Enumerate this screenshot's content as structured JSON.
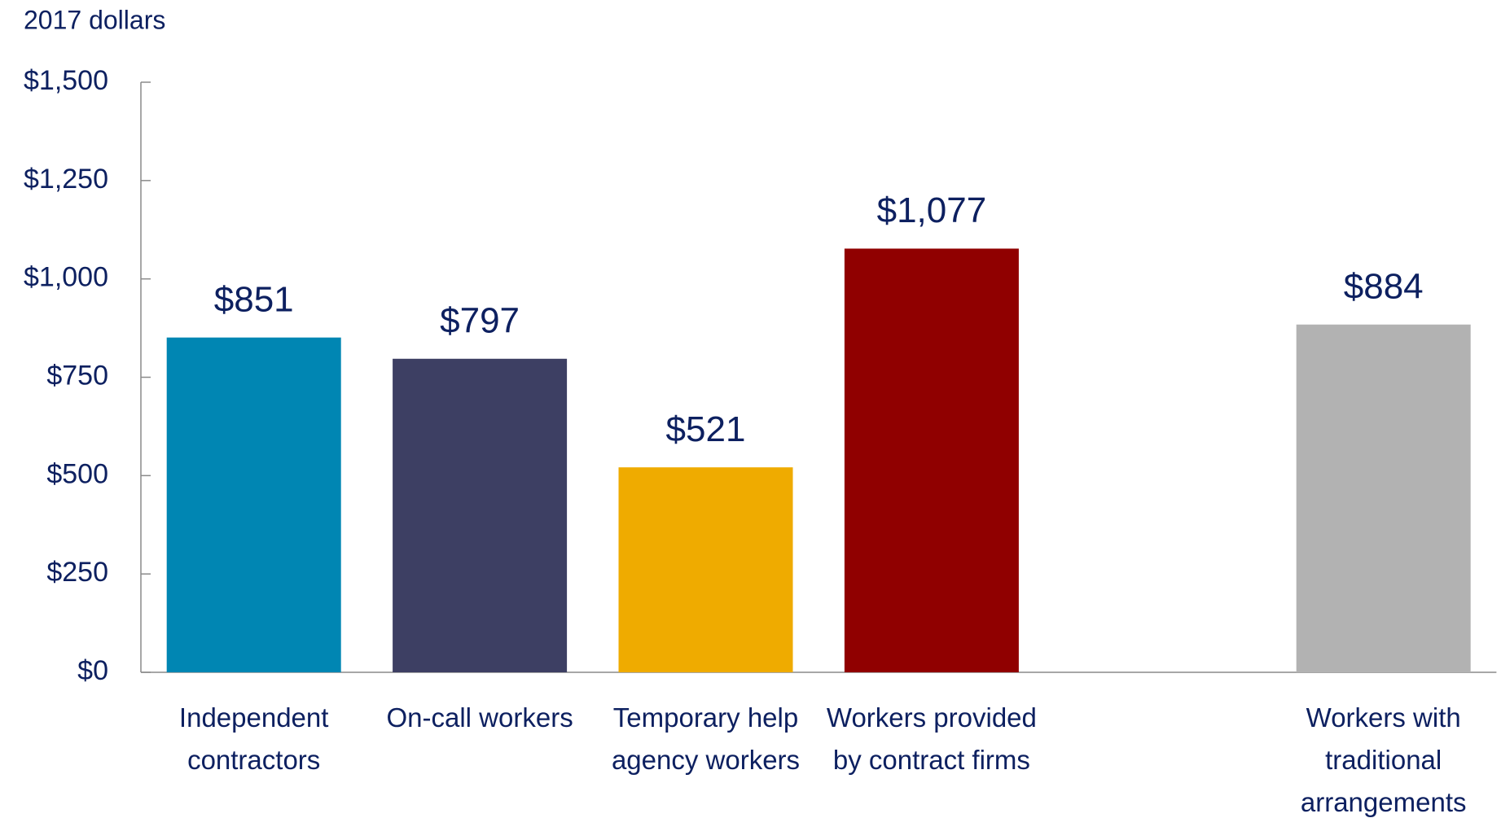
{
  "chart_data": {
    "type": "bar",
    "axis_label": "2017 dollars",
    "categories": [
      "Independent contractors",
      "On-call workers",
      "Temporary help agency workers",
      "Workers provided by contract firms",
      null,
      "Workers with traditional arrangements"
    ],
    "values": [
      851,
      797,
      521,
      1077,
      null,
      884
    ],
    "value_labels": [
      "$851",
      "$797",
      "$521",
      "$1,077",
      null,
      "$884"
    ],
    "colors": [
      "#0086b3",
      "#3d3f63",
      "#efab00",
      "#900000",
      null,
      "#b2b2b2"
    ],
    "ylim": [
      0,
      1500
    ],
    "yticks": [
      {
        "value": 0,
        "label": "$0"
      },
      {
        "value": 250,
        "label": "$250"
      },
      {
        "value": 500,
        "label": "$500"
      },
      {
        "value": 750,
        "label": "$750"
      },
      {
        "value": 1000,
        "label": "$1,000"
      },
      {
        "value": 1250,
        "label": "$1,250"
      },
      {
        "value": 1500,
        "label": "$1,500"
      }
    ]
  }
}
